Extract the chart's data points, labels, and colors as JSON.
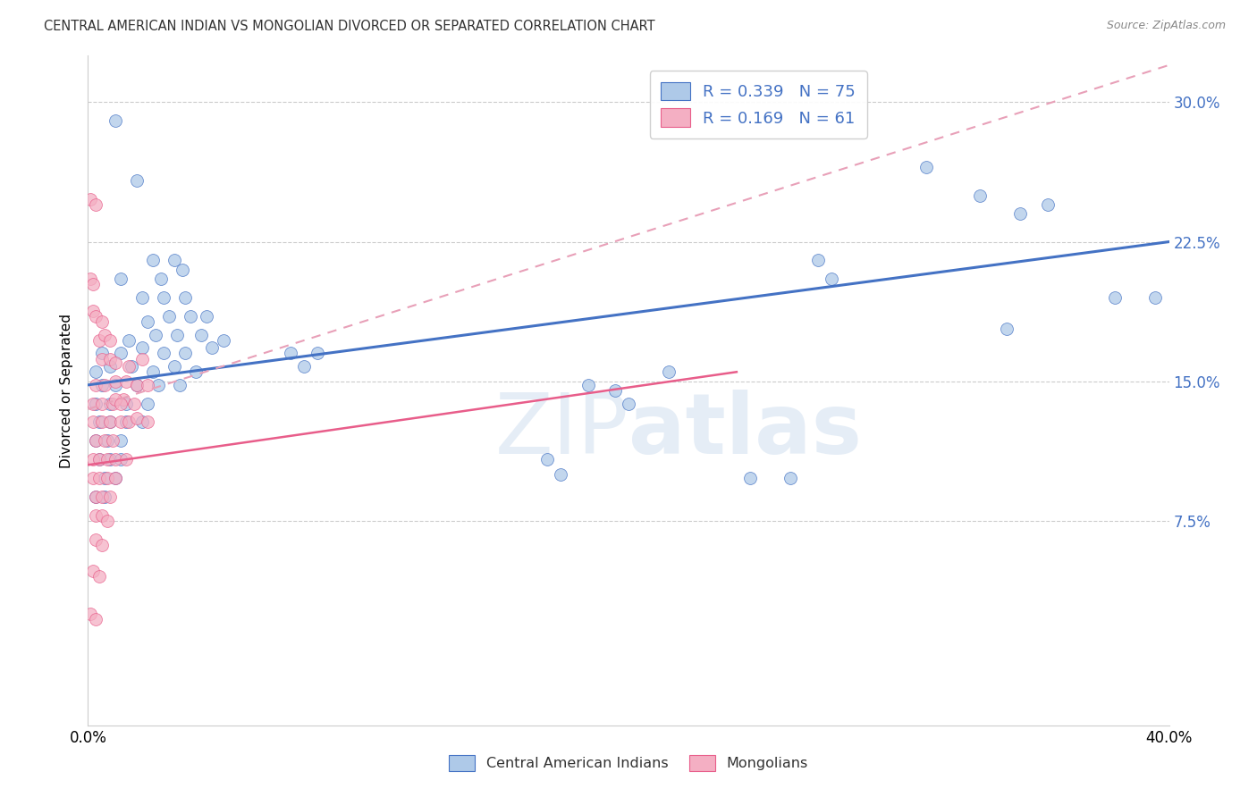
{
  "title": "CENTRAL AMERICAN INDIAN VS MONGOLIAN DIVORCED OR SEPARATED CORRELATION CHART",
  "source": "Source: ZipAtlas.com",
  "ylabel": "Divorced or Separated",
  "yticks": [
    "7.5%",
    "15.0%",
    "22.5%",
    "30.0%"
  ],
  "ytick_vals": [
    0.075,
    0.15,
    0.225,
    0.3
  ],
  "xmin": 0.0,
  "xmax": 0.4,
  "ymin": -0.035,
  "ymax": 0.325,
  "color_blue": "#aec9e8",
  "color_pink": "#f4afc3",
  "line_blue": "#4472c4",
  "line_pink": "#e85d8a",
  "line_dashed_color": "#e8a0b8",
  "watermark_zip": "ZIP",
  "watermark_atlas": "atlas",
  "blue_line_x0": 0.0,
  "blue_line_y0": 0.148,
  "blue_line_x1": 0.4,
  "blue_line_y1": 0.225,
  "dashed_line_x0": 0.0,
  "dashed_line_y0": 0.135,
  "dashed_line_x1": 0.4,
  "dashed_line_y1": 0.32,
  "pink_line_x0": 0.0,
  "pink_line_y0": 0.105,
  "pink_line_x1": 0.24,
  "pink_line_y1": 0.155,
  "blue_points": [
    [
      0.01,
      0.29
    ],
    [
      0.018,
      0.258
    ],
    [
      0.012,
      0.205
    ],
    [
      0.024,
      0.215
    ],
    [
      0.032,
      0.215
    ],
    [
      0.027,
      0.205
    ],
    [
      0.035,
      0.21
    ],
    [
      0.02,
      0.195
    ],
    [
      0.028,
      0.195
    ],
    [
      0.036,
      0.195
    ],
    [
      0.022,
      0.182
    ],
    [
      0.03,
      0.185
    ],
    [
      0.038,
      0.185
    ],
    [
      0.044,
      0.185
    ],
    [
      0.015,
      0.172
    ],
    [
      0.025,
      0.175
    ],
    [
      0.033,
      0.175
    ],
    [
      0.042,
      0.175
    ],
    [
      0.05,
      0.172
    ],
    [
      0.005,
      0.165
    ],
    [
      0.012,
      0.165
    ],
    [
      0.02,
      0.168
    ],
    [
      0.028,
      0.165
    ],
    [
      0.036,
      0.165
    ],
    [
      0.046,
      0.168
    ],
    [
      0.003,
      0.155
    ],
    [
      0.008,
      0.158
    ],
    [
      0.016,
      0.158
    ],
    [
      0.024,
      0.155
    ],
    [
      0.032,
      0.158
    ],
    [
      0.04,
      0.155
    ],
    [
      0.005,
      0.148
    ],
    [
      0.01,
      0.148
    ],
    [
      0.018,
      0.148
    ],
    [
      0.026,
      0.148
    ],
    [
      0.034,
      0.148
    ],
    [
      0.003,
      0.138
    ],
    [
      0.008,
      0.138
    ],
    [
      0.014,
      0.138
    ],
    [
      0.022,
      0.138
    ],
    [
      0.004,
      0.128
    ],
    [
      0.008,
      0.128
    ],
    [
      0.014,
      0.128
    ],
    [
      0.02,
      0.128
    ],
    [
      0.003,
      0.118
    ],
    [
      0.007,
      0.118
    ],
    [
      0.012,
      0.118
    ],
    [
      0.004,
      0.108
    ],
    [
      0.008,
      0.108
    ],
    [
      0.012,
      0.108
    ],
    [
      0.006,
      0.098
    ],
    [
      0.01,
      0.098
    ],
    [
      0.003,
      0.088
    ],
    [
      0.006,
      0.088
    ],
    [
      0.075,
      0.165
    ],
    [
      0.08,
      0.158
    ],
    [
      0.085,
      0.165
    ],
    [
      0.17,
      0.108
    ],
    [
      0.175,
      0.1
    ],
    [
      0.185,
      0.148
    ],
    [
      0.195,
      0.145
    ],
    [
      0.2,
      0.138
    ],
    [
      0.215,
      0.155
    ],
    [
      0.245,
      0.098
    ],
    [
      0.26,
      0.098
    ],
    [
      0.27,
      0.215
    ],
    [
      0.275,
      0.205
    ],
    [
      0.31,
      0.265
    ],
    [
      0.33,
      0.25
    ],
    [
      0.345,
      0.24
    ],
    [
      0.355,
      0.245
    ],
    [
      0.34,
      0.178
    ],
    [
      0.38,
      0.195
    ],
    [
      0.395,
      0.195
    ]
  ],
  "pink_points": [
    [
      0.001,
      0.248
    ],
    [
      0.003,
      0.245
    ],
    [
      0.001,
      0.205
    ],
    [
      0.002,
      0.202
    ],
    [
      0.002,
      0.188
    ],
    [
      0.003,
      0.185
    ],
    [
      0.005,
      0.182
    ],
    [
      0.004,
      0.172
    ],
    [
      0.006,
      0.175
    ],
    [
      0.008,
      0.172
    ],
    [
      0.005,
      0.162
    ],
    [
      0.008,
      0.162
    ],
    [
      0.01,
      0.16
    ],
    [
      0.015,
      0.158
    ],
    [
      0.02,
      0.162
    ],
    [
      0.003,
      0.148
    ],
    [
      0.006,
      0.148
    ],
    [
      0.01,
      0.15
    ],
    [
      0.014,
      0.15
    ],
    [
      0.018,
      0.148
    ],
    [
      0.022,
      0.148
    ],
    [
      0.002,
      0.138
    ],
    [
      0.005,
      0.138
    ],
    [
      0.009,
      0.138
    ],
    [
      0.013,
      0.14
    ],
    [
      0.017,
      0.138
    ],
    [
      0.002,
      0.128
    ],
    [
      0.005,
      0.128
    ],
    [
      0.008,
      0.128
    ],
    [
      0.012,
      0.128
    ],
    [
      0.003,
      0.118
    ],
    [
      0.006,
      0.118
    ],
    [
      0.009,
      0.118
    ],
    [
      0.002,
      0.108
    ],
    [
      0.004,
      0.108
    ],
    [
      0.007,
      0.108
    ],
    [
      0.01,
      0.108
    ],
    [
      0.014,
      0.108
    ],
    [
      0.002,
      0.098
    ],
    [
      0.004,
      0.098
    ],
    [
      0.007,
      0.098
    ],
    [
      0.01,
      0.098
    ],
    [
      0.003,
      0.088
    ],
    [
      0.005,
      0.088
    ],
    [
      0.008,
      0.088
    ],
    [
      0.003,
      0.078
    ],
    [
      0.005,
      0.078
    ],
    [
      0.007,
      0.075
    ],
    [
      0.003,
      0.065
    ],
    [
      0.005,
      0.062
    ],
    [
      0.002,
      0.048
    ],
    [
      0.004,
      0.045
    ],
    [
      0.001,
      0.025
    ],
    [
      0.003,
      0.022
    ],
    [
      0.015,
      0.128
    ],
    [
      0.018,
      0.13
    ],
    [
      0.022,
      0.128
    ],
    [
      0.01,
      0.14
    ],
    [
      0.012,
      0.138
    ]
  ]
}
